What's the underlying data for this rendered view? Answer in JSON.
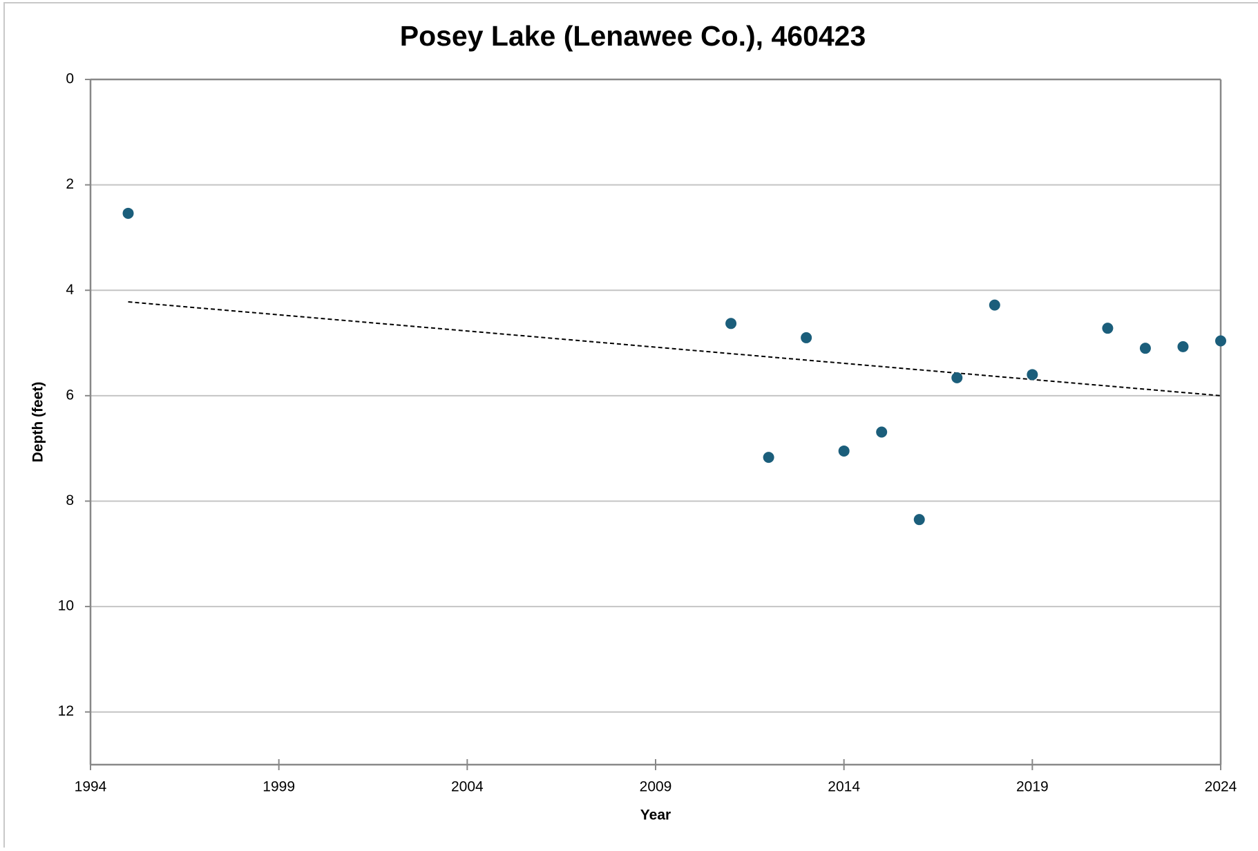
{
  "chart_data": {
    "type": "scatter",
    "title": "Posey Lake (Lenawee Co.), 460423",
    "x_label": "Year",
    "y_label": "Depth (feet)",
    "x": [
      1995,
      2011,
      2012,
      2013,
      2014,
      2015,
      2016,
      2017,
      2018,
      2019,
      2021,
      2022,
      2023,
      2024
    ],
    "values": [
      2.54,
      4.63,
      7.17,
      4.9,
      7.05,
      6.69,
      8.35,
      5.66,
      4.28,
      5.6,
      4.72,
      5.1,
      5.07,
      4.96
    ],
    "color": "#1b5e7b",
    "trendline": {
      "x": [
        1995,
        2024
      ],
      "values": [
        4.22,
        6.0
      ],
      "color": "#000000"
    },
    "xlim": [
      1994,
      2024
    ],
    "xticks": [
      1994,
      1999,
      2004,
      2009,
      2014,
      2019,
      2024
    ],
    "ylim": [
      0,
      13
    ],
    "yticks": [
      0,
      2,
      4,
      6,
      8,
      10,
      12
    ],
    "y_inverted": true,
    "grid": true
  }
}
